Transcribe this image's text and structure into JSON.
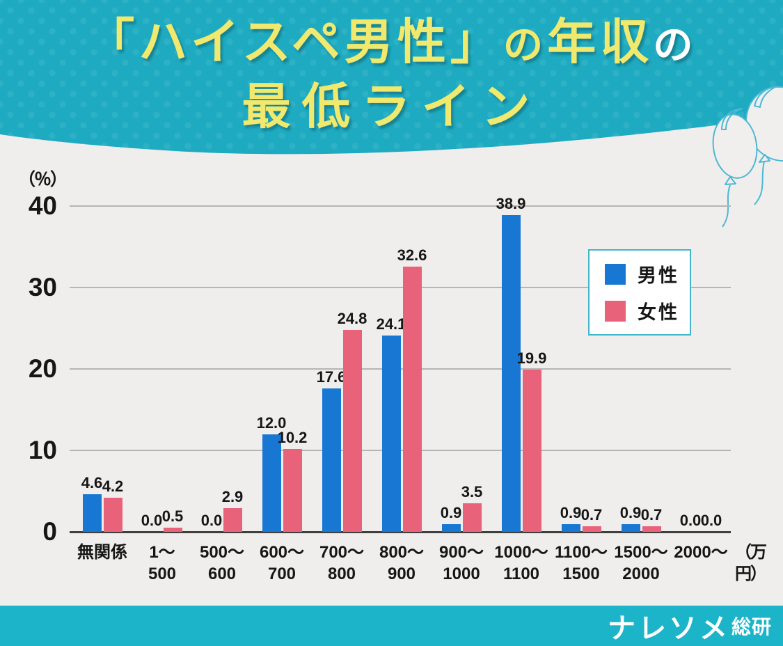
{
  "header": {
    "title_line1": [
      {
        "text": "「ハイスペ男性」"
      },
      {
        "text": "の"
      },
      {
        "text": "年収"
      },
      {
        "text": "の"
      }
    ],
    "title_line2": "最低ライン"
  },
  "chart_data": {
    "type": "bar",
    "title": "「ハイスペ男性」の年収の最低ライン",
    "y_axis_label": "（％）",
    "x_unit_label": "（万円）",
    "ylim": [
      0,
      40
    ],
    "yticks": [
      0,
      10,
      20,
      30,
      40
    ],
    "grid": true,
    "legend_position": "upper-right",
    "categories": [
      "無関係",
      "1〜500",
      "500〜600",
      "600〜700",
      "700〜800",
      "800〜900",
      "900〜1000",
      "1000〜1100",
      "1100〜1500",
      "1500〜2000",
      "2000〜"
    ],
    "category_lines": [
      [
        "無関係"
      ],
      [
        "1〜",
        "500"
      ],
      [
        "500〜",
        "600"
      ],
      [
        "600〜",
        "700"
      ],
      [
        "700〜",
        "800"
      ],
      [
        "800〜",
        "900"
      ],
      [
        "900〜",
        "1000"
      ],
      [
        "1000〜",
        "1100"
      ],
      [
        "1100〜",
        "1500"
      ],
      [
        "1500〜",
        "2000"
      ],
      [
        "2000〜"
      ]
    ],
    "series": [
      {
        "name": "男性",
        "color": "#1777d3",
        "values": [
          4.6,
          0.0,
          0.0,
          12.0,
          17.6,
          24.1,
          0.9,
          38.9,
          0.9,
          0.9,
          0.0
        ]
      },
      {
        "name": "女性",
        "color": "#e8637a",
        "values": [
          4.2,
          0.5,
          2.9,
          10.2,
          24.8,
          32.6,
          3.5,
          19.9,
          0.7,
          0.7,
          0.0
        ]
      }
    ]
  },
  "footer": {
    "logo_main": "ナレソメ",
    "logo_sub": "総研"
  },
  "colors": {
    "header_teal": "#1eabc1",
    "footer_teal": "#1cb4c8",
    "title_yellow": "#f0e96e",
    "title_white": "#ffffff",
    "male_blue": "#1777d3",
    "female_pink": "#e8637a",
    "chart_bg": "#efeeed",
    "legend_border": "#41b7cc"
  }
}
